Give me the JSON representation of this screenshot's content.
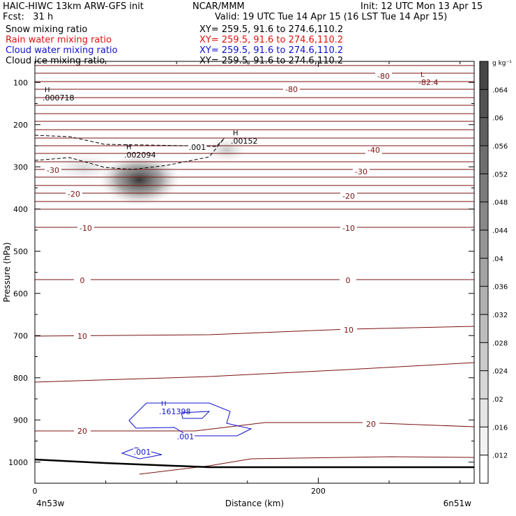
{
  "header": {
    "title_left": "HAIC-HIWC 13km ARW-GFS init",
    "title_center": "NCAR/MMM",
    "init": "Init: 12 UTC Mon 13 Apr 15",
    "fcst": "Fcst:   31 h",
    "valid": "Valid: 19 UTC Tue 14 Apr 15 (16 LST Tue 14 Apr 15)"
  },
  "fields": [
    {
      "name": "Snow mixing ratio",
      "xy": "XY= 259.5, 91.6 to 274.6,110.2",
      "color": "#000000"
    },
    {
      "name": "Rain water mixing ratio",
      "xy": "XY= 259.5, 91.6 to 274.6,110.2",
      "color": "#e01010"
    },
    {
      "name": "Cloud water mixing ratio",
      "xy": "XY= 259.5, 91.6 to 274.6,110.2",
      "color": "#1010d0"
    },
    {
      "name": "Cloud ice mixing ratio",
      "xy": "XY= 259.5, 91.6 to 274.6,110.2",
      "color": "#000000"
    }
  ],
  "chart_data": {
    "type": "contour",
    "ylabel": "Pressure (hPa)",
    "xlabel": "Distance (km)",
    "x_ticks": [
      "0",
      "200"
    ],
    "y_ticks": [
      "100",
      "200",
      "300",
      "400",
      "500",
      "600",
      "700",
      "800",
      "900",
      "1000"
    ],
    "xlim": [
      0,
      310
    ],
    "ylim": [
      50,
      1050
    ],
    "y_inverted": true,
    "x_endpoints": {
      "left": "4n53w",
      "right": "6n51w"
    },
    "colorbar": {
      "unit": "g kg⁻¹",
      "ticks": [
        ".064",
        ".06",
        ".056",
        ".052",
        ".048",
        ".044",
        ".04",
        ".036",
        ".032",
        ".028",
        ".024",
        ".02",
        ".016",
        ".012"
      ]
    },
    "temperature_contour_labels": [
      "-80",
      "-80",
      "-40",
      "-30",
      "-30",
      "-20",
      "-20",
      "-10",
      "-10",
      "0",
      "0",
      "10",
      "10",
      "20",
      "20"
    ],
    "extrema": [
      {
        "mark": "L",
        "value": "-82.4",
        "color": "#7a1010"
      },
      {
        "mark": "H",
        "value": ".000718",
        "color": "#000000"
      },
      {
        "mark": "H",
        "value": ".002094",
        "color": "#000000"
      },
      {
        "mark": "H",
        "value": ".00152",
        "color": "#000000"
      },
      {
        "mark": "H",
        "value": ".161398",
        "color": "#1010d0"
      }
    ],
    "contour_value_labels": [
      {
        "value": ".001",
        "color": "#000000"
      },
      {
        "value": ".001",
        "color": "#1010d0"
      },
      {
        "value": ".001",
        "color": "#1010d0"
      }
    ]
  }
}
